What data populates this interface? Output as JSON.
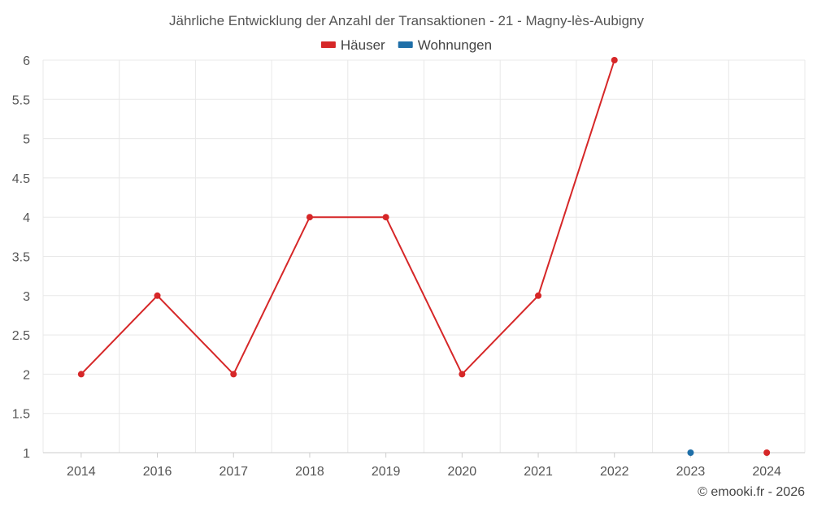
{
  "chart_data": {
    "type": "line",
    "title": "Jährliche Entwicklung der Anzahl der Transaktionen - 21 - Magny-lès-Aubigny",
    "categories": [
      "2014",
      "2016",
      "2017",
      "2018",
      "2019",
      "2020",
      "2021",
      "2022",
      "2023",
      "2024"
    ],
    "series": [
      {
        "name": "Häuser",
        "color": "#d62728",
        "values": [
          2,
          3,
          2,
          4,
          4,
          2,
          3,
          6,
          null,
          1
        ]
      },
      {
        "name": "Wohnungen",
        "color": "#1f6fa8",
        "values": [
          null,
          null,
          null,
          null,
          null,
          null,
          null,
          null,
          1,
          null
        ]
      }
    ],
    "ylim": [
      1,
      6
    ],
    "yticks": [
      "1",
      "1.5",
      "2",
      "2.5",
      "3",
      "3.5",
      "4",
      "4.5",
      "5",
      "5.5",
      "6"
    ],
    "grid": true,
    "legend_position": "top-center",
    "xlabel": "",
    "ylabel": ""
  },
  "credit": "© emooki.fr - 2026"
}
